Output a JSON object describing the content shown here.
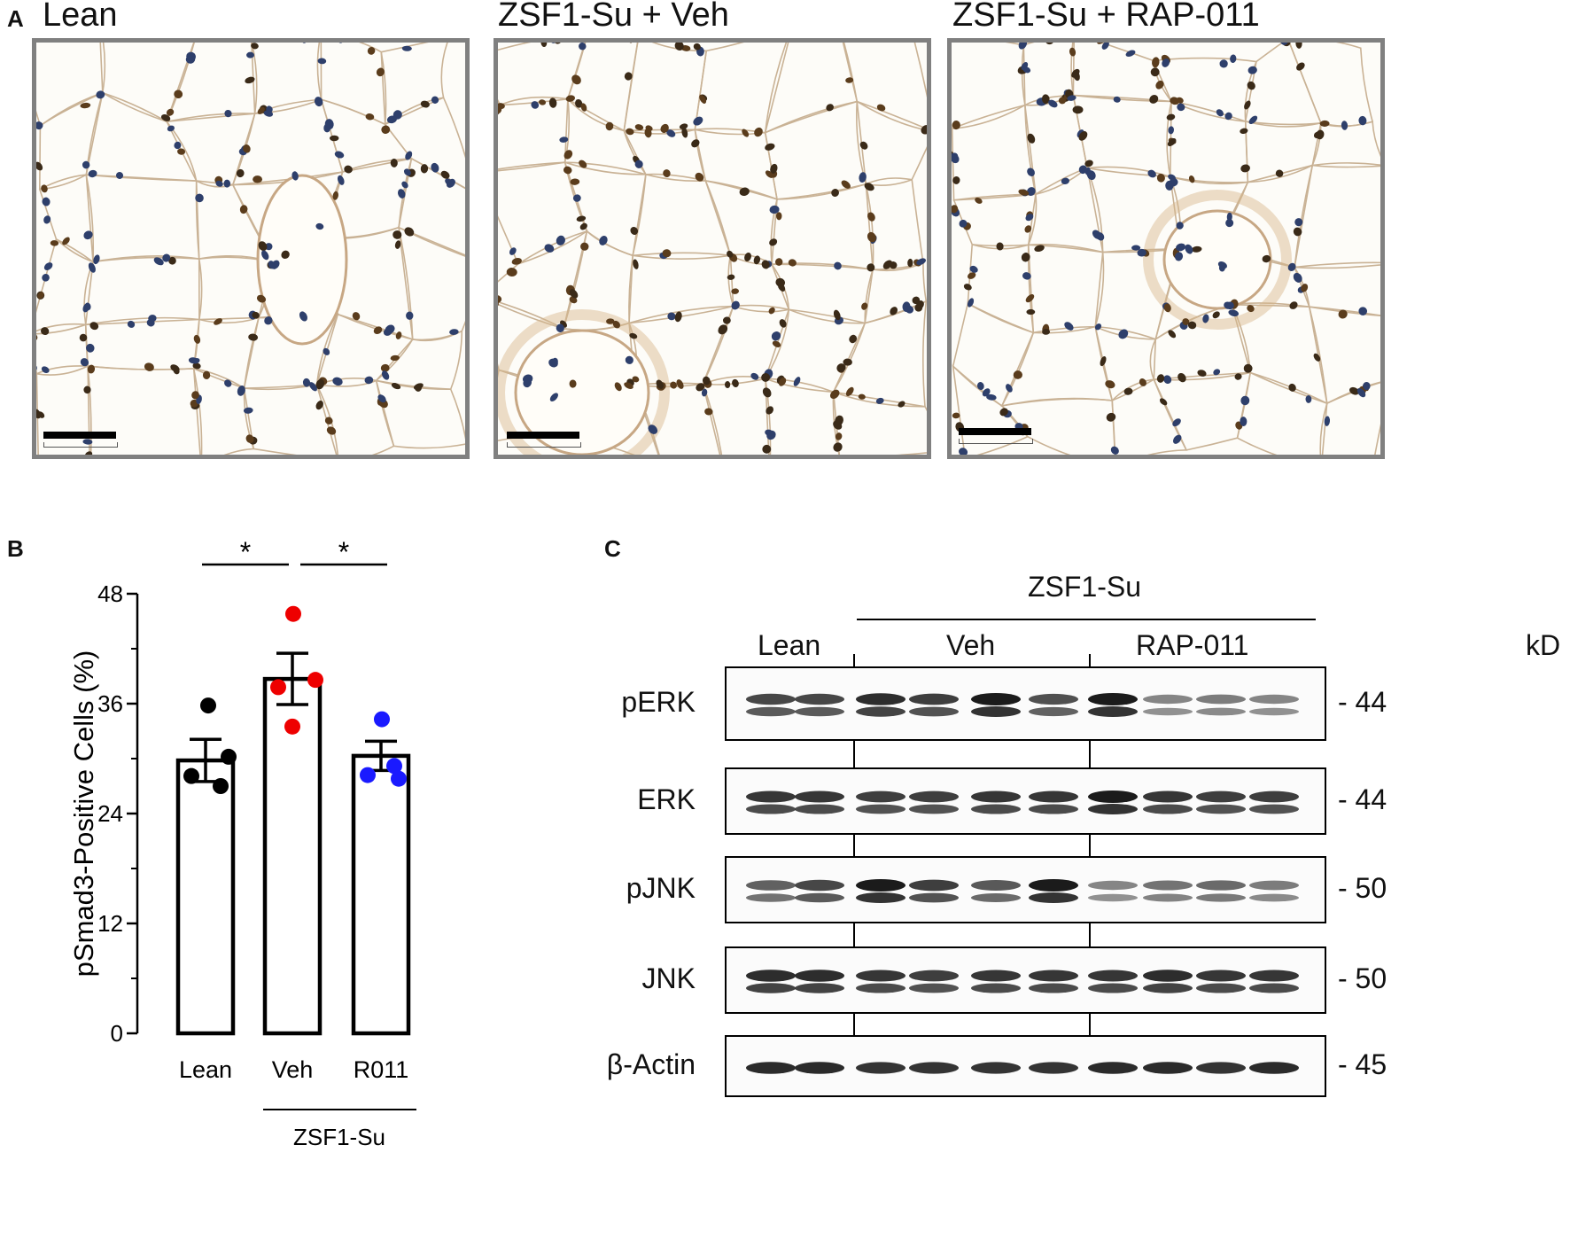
{
  "panelA": {
    "label": "A",
    "panels": [
      {
        "title": "Lean"
      },
      {
        "title": "ZSF1-Su + Veh"
      },
      {
        "title": "ZSF1-Su + RAP-011"
      }
    ]
  },
  "panelB": {
    "label": "B",
    "chart_data": {
      "type": "bar",
      "categories": [
        "Lean",
        "Veh",
        "R011"
      ],
      "values": [
        29.8,
        38.7,
        30.3
      ],
      "sem": [
        2.3,
        2.8,
        1.6
      ],
      "points": [
        [
          35.8,
          30.2,
          28.1,
          27.0
        ],
        [
          45.8,
          38.6,
          37.8,
          33.5
        ],
        [
          34.3,
          29.2,
          28.2,
          27.8
        ]
      ],
      "point_colors": [
        "#000000",
        "#ee0000",
        "#1a1aff"
      ],
      "ylabel": "pSmad3-Positive Cells (%)",
      "ylim": [
        0,
        48
      ],
      "yticks": [
        0,
        12,
        24,
        36,
        48
      ],
      "group_label": "ZSF1-Su",
      "significance": [
        {
          "from": "Lean",
          "to": "Veh",
          "label": "*"
        },
        {
          "from": "Veh",
          "to": "R011",
          "label": "*"
        }
      ]
    }
  },
  "panelC": {
    "label": "C",
    "group_header": "ZSF1-Su",
    "lane_groups": [
      {
        "label": "Lean",
        "lanes": 2
      },
      {
        "label": "Veh",
        "lanes": 4
      },
      {
        "label": "RAP-011",
        "lanes": 4
      }
    ],
    "unit_label": "kD",
    "blots": [
      {
        "name": "pERK",
        "kd": "- 44",
        "intensity": [
          0.75,
          0.75,
          0.9,
          0.8,
          1.0,
          0.7,
          1.0,
          0.4,
          0.45,
          0.4
        ],
        "double": true
      },
      {
        "name": "ERK",
        "kd": "- 44",
        "intensity": [
          0.85,
          0.85,
          0.8,
          0.8,
          0.85,
          0.85,
          1.0,
          0.85,
          0.8,
          0.8
        ],
        "double": true
      },
      {
        "name": "pJNK",
        "kd": "- 50",
        "intensity": [
          0.6,
          0.75,
          1.0,
          0.8,
          0.65,
          1.0,
          0.4,
          0.5,
          0.55,
          0.45
        ],
        "double": true
      },
      {
        "name": "JNK",
        "kd": "- 50",
        "intensity": [
          0.9,
          0.9,
          0.85,
          0.8,
          0.85,
          0.85,
          0.85,
          0.9,
          0.85,
          0.85
        ],
        "double": true
      },
      {
        "name": "β-Actin",
        "kd": "- 45",
        "intensity": [
          0.85,
          0.85,
          0.8,
          0.8,
          0.8,
          0.8,
          0.85,
          0.85,
          0.8,
          0.85
        ],
        "double": false
      }
    ]
  }
}
